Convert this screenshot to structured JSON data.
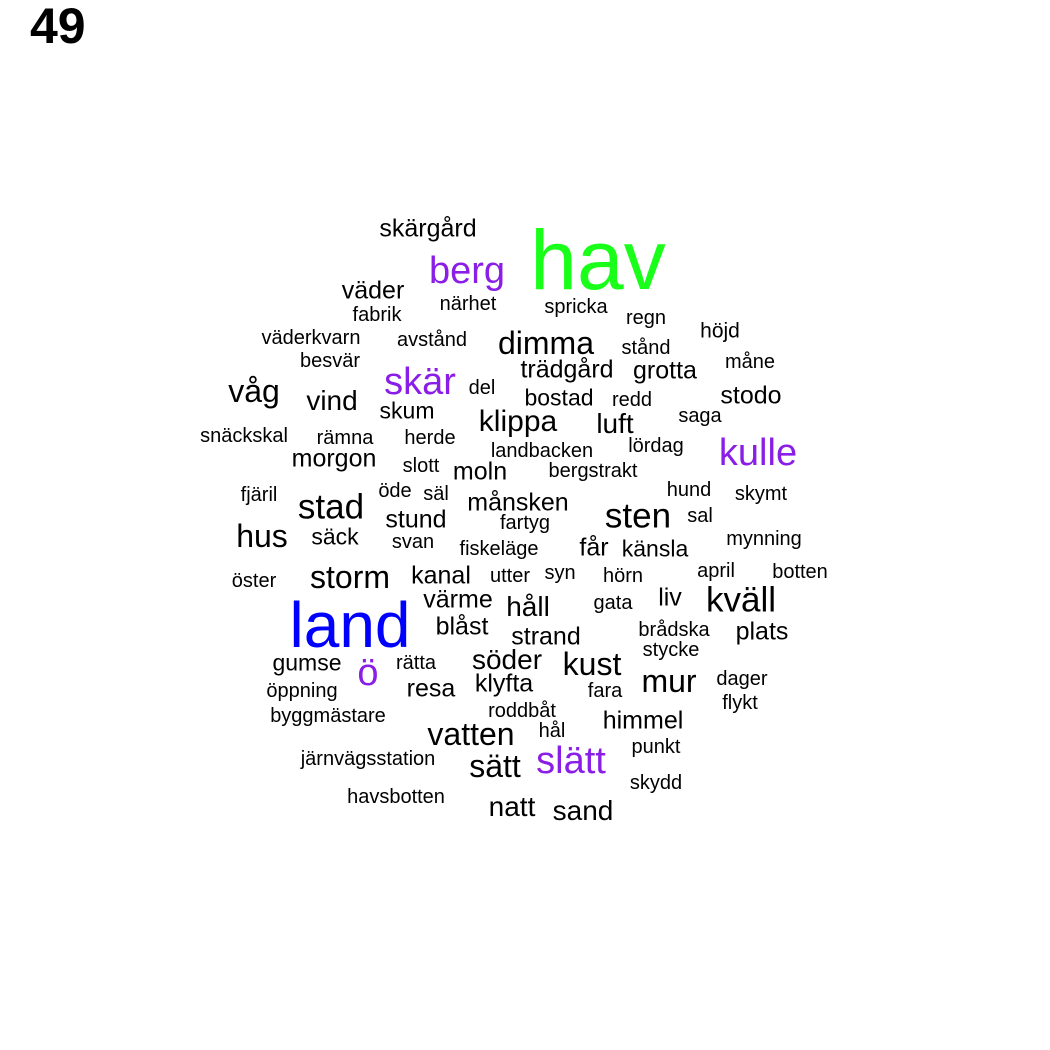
{
  "page_number": "49",
  "colors": {
    "default": "#000000",
    "green": "#1aff1a",
    "blue": "#0000ff",
    "purple": "#8a1ee6"
  },
  "words": [
    {
      "text": "hav",
      "weight": 10,
      "color": "green"
    },
    {
      "text": "land",
      "weight": 9,
      "color": "blue"
    },
    {
      "text": "berg",
      "weight": 5,
      "color": "purple"
    },
    {
      "text": "skär",
      "weight": 5,
      "color": "purple"
    },
    {
      "text": "kulle",
      "weight": 5,
      "color": "purple"
    },
    {
      "text": "ö",
      "weight": 5,
      "color": "purple"
    },
    {
      "text": "slätt",
      "weight": 5,
      "color": "purple"
    },
    {
      "text": "skärgård",
      "weight": 2
    },
    {
      "text": "väder",
      "weight": 2
    },
    {
      "text": "närhet",
      "weight": 1
    },
    {
      "text": "spricka",
      "weight": 1
    },
    {
      "text": "fabrik",
      "weight": 1
    },
    {
      "text": "regn",
      "weight": 1
    },
    {
      "text": "höjd",
      "weight": 1
    },
    {
      "text": "väderkvarn",
      "weight": 1
    },
    {
      "text": "avstånd",
      "weight": 1
    },
    {
      "text": "dimma",
      "weight": 3
    },
    {
      "text": "stånd",
      "weight": 1
    },
    {
      "text": "besvär",
      "weight": 1
    },
    {
      "text": "måne",
      "weight": 1
    },
    {
      "text": "trädgård",
      "weight": 2
    },
    {
      "text": "grotta",
      "weight": 2
    },
    {
      "text": "våg",
      "weight": 3
    },
    {
      "text": "del",
      "weight": 1
    },
    {
      "text": "bostad",
      "weight": 2
    },
    {
      "text": "redd",
      "weight": 1
    },
    {
      "text": "stodo",
      "weight": 2
    },
    {
      "text": "vind",
      "weight": 2
    },
    {
      "text": "skum",
      "weight": 2
    },
    {
      "text": "klippa",
      "weight": 3
    },
    {
      "text": "luft",
      "weight": 2
    },
    {
      "text": "saga",
      "weight": 1
    },
    {
      "text": "snäckskal",
      "weight": 1
    },
    {
      "text": "rämna",
      "weight": 1
    },
    {
      "text": "herde",
      "weight": 1
    },
    {
      "text": "landbacken",
      "weight": 1
    },
    {
      "text": "lördag",
      "weight": 1
    },
    {
      "text": "morgon",
      "weight": 2
    },
    {
      "text": "slott",
      "weight": 1
    },
    {
      "text": "moln",
      "weight": 2
    },
    {
      "text": "bergstrakt",
      "weight": 1
    },
    {
      "text": "fjäril",
      "weight": 1
    },
    {
      "text": "öde",
      "weight": 1
    },
    {
      "text": "säl",
      "weight": 1
    },
    {
      "text": "hund",
      "weight": 1
    },
    {
      "text": "skymt",
      "weight": 1
    },
    {
      "text": "stad",
      "weight": 4
    },
    {
      "text": "månsken",
      "weight": 2
    },
    {
      "text": "sten",
      "weight": 4
    },
    {
      "text": "stund",
      "weight": 2
    },
    {
      "text": "fartyg",
      "weight": 1
    },
    {
      "text": "sal",
      "weight": 1
    },
    {
      "text": "hus",
      "weight": 3
    },
    {
      "text": "säck",
      "weight": 1
    },
    {
      "text": "svan",
      "weight": 1
    },
    {
      "text": "fiskeläge",
      "weight": 1
    },
    {
      "text": "får",
      "weight": 2
    },
    {
      "text": "känsla",
      "weight": 1
    },
    {
      "text": "mynning",
      "weight": 1
    },
    {
      "text": "storm",
      "weight": 3
    },
    {
      "text": "kanal",
      "weight": 2
    },
    {
      "text": "utter",
      "weight": 1
    },
    {
      "text": "syn",
      "weight": 1
    },
    {
      "text": "hörn",
      "weight": 1
    },
    {
      "text": "april",
      "weight": 1
    },
    {
      "text": "botten",
      "weight": 1
    },
    {
      "text": "öster",
      "weight": 1
    },
    {
      "text": "värme",
      "weight": 2
    },
    {
      "text": "håll",
      "weight": 2
    },
    {
      "text": "gata",
      "weight": 1
    },
    {
      "text": "liv",
      "weight": 1
    },
    {
      "text": "kväll",
      "weight": 4
    },
    {
      "text": "blåst",
      "weight": 2
    },
    {
      "text": "strand",
      "weight": 2
    },
    {
      "text": "brådska",
      "weight": 1
    },
    {
      "text": "plats",
      "weight": 2
    },
    {
      "text": "stycke",
      "weight": 1
    },
    {
      "text": "gumse",
      "weight": 1
    },
    {
      "text": "rätta",
      "weight": 1
    },
    {
      "text": "söder",
      "weight": 2
    },
    {
      "text": "kust",
      "weight": 3
    },
    {
      "text": "klyfta",
      "weight": 2
    },
    {
      "text": "mur",
      "weight": 3
    },
    {
      "text": "dager",
      "weight": 1
    },
    {
      "text": "öppning",
      "weight": 1
    },
    {
      "text": "resa",
      "weight": 2
    },
    {
      "text": "fara",
      "weight": 1
    },
    {
      "text": "flykt",
      "weight": 1
    },
    {
      "text": "byggmästare",
      "weight": 1
    },
    {
      "text": "roddbåt",
      "weight": 1
    },
    {
      "text": "himmel",
      "weight": 2
    },
    {
      "text": "hål",
      "weight": 1
    },
    {
      "text": "vatten",
      "weight": 3
    },
    {
      "text": "punkt",
      "weight": 1
    },
    {
      "text": "järnvägsstation",
      "weight": 1
    },
    {
      "text": "sätt",
      "weight": 3
    },
    {
      "text": "skydd",
      "weight": 1
    },
    {
      "text": "havsbotten",
      "weight": 1
    },
    {
      "text": "natt",
      "weight": 3
    },
    {
      "text": "sand",
      "weight": 3
    }
  ]
}
